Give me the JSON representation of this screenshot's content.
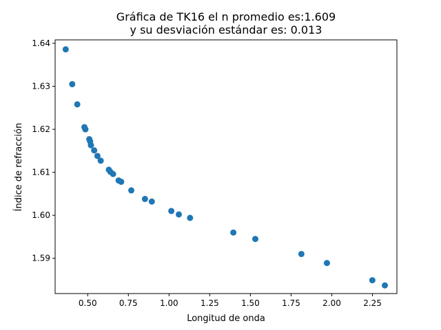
{
  "chart_data": {
    "type": "scatter",
    "title_line1": "Gráfica de TK16 el n promedio es:1.609",
    "title_line2": "y su desviación estándar es: 0.013",
    "xlabel": "Longitud de onda",
    "ylabel": "Índice de refracción",
    "xlim": [
      0.3,
      2.4
    ],
    "ylim": [
      1.5818,
      1.6408
    ],
    "xticks": [
      {
        "value": 0.5,
        "label": "0.50"
      },
      {
        "value": 0.75,
        "label": "0.75"
      },
      {
        "value": 1.0,
        "label": "1.00"
      },
      {
        "value": 1.25,
        "label": "1.25"
      },
      {
        "value": 1.5,
        "label": "1.50"
      },
      {
        "value": 1.75,
        "label": "1.75"
      },
      {
        "value": 2.0,
        "label": "2.00"
      },
      {
        "value": 2.25,
        "label": "2.25"
      }
    ],
    "yticks": [
      {
        "value": 1.59,
        "label": "1.59"
      },
      {
        "value": 1.6,
        "label": "1.60"
      },
      {
        "value": 1.61,
        "label": "1.61"
      },
      {
        "value": 1.62,
        "label": "1.62"
      },
      {
        "value": 1.63,
        "label": "1.63"
      },
      {
        "value": 1.64,
        "label": "1.64"
      }
    ],
    "grid": false,
    "marker_color": "#1f77b4",
    "points": [
      {
        "x": 0.365,
        "y": 1.6386
      },
      {
        "x": 0.405,
        "y": 1.6305
      },
      {
        "x": 0.436,
        "y": 1.6258
      },
      {
        "x": 0.48,
        "y": 1.6205
      },
      {
        "x": 0.486,
        "y": 1.62
      },
      {
        "x": 0.51,
        "y": 1.6177
      },
      {
        "x": 0.515,
        "y": 1.6172
      },
      {
        "x": 0.52,
        "y": 1.6163
      },
      {
        "x": 0.54,
        "y": 1.6151
      },
      {
        "x": 0.56,
        "y": 1.6138
      },
      {
        "x": 0.58,
        "y": 1.6127
      },
      {
        "x": 0.63,
        "y": 1.6106
      },
      {
        "x": 0.64,
        "y": 1.6101
      },
      {
        "x": 0.656,
        "y": 1.6096
      },
      {
        "x": 0.69,
        "y": 1.6081
      },
      {
        "x": 0.706,
        "y": 1.6078
      },
      {
        "x": 0.768,
        "y": 1.6058
      },
      {
        "x": 0.852,
        "y": 1.6038
      },
      {
        "x": 0.894,
        "y": 1.6032
      },
      {
        "x": 1.014,
        "y": 1.601
      },
      {
        "x": 1.06,
        "y": 1.6002
      },
      {
        "x": 1.129,
        "y": 1.5994
      },
      {
        "x": 1.395,
        "y": 1.596
      },
      {
        "x": 1.53,
        "y": 1.5945
      },
      {
        "x": 1.813,
        "y": 1.591
      },
      {
        "x": 1.97,
        "y": 1.5889
      },
      {
        "x": 2.249,
        "y": 1.5849
      },
      {
        "x": 2.326,
        "y": 1.5837
      }
    ]
  }
}
